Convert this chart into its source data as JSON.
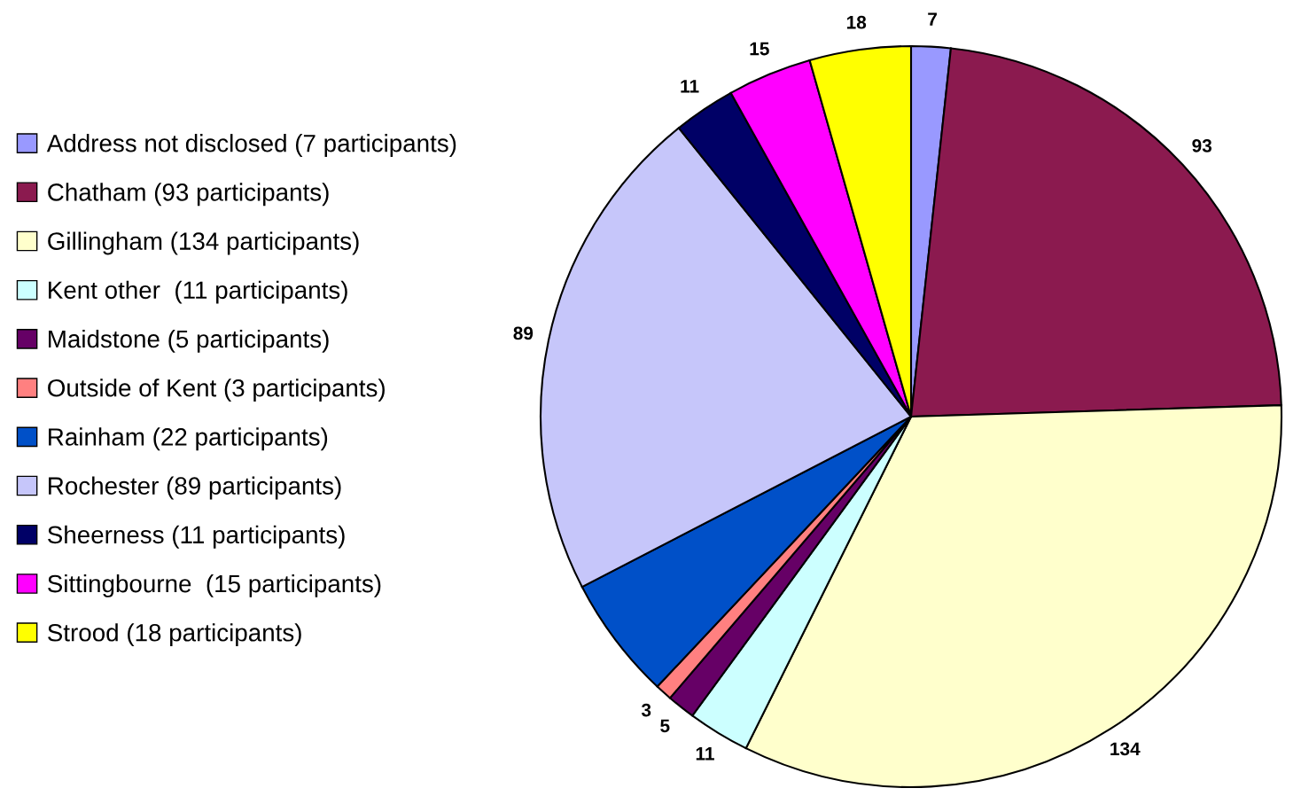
{
  "chart_data": {
    "type": "pie",
    "categories": [
      "Address not disclosed (7 participants)",
      "Chatham (93 participants)",
      "Gillingham (134 participants)",
      "Kent other  (11 participants)",
      "Maidstone (5 participants)",
      "Outside of Kent (3 participants)",
      "Rainham (22 participants)",
      "Rochester (89 participants)",
      "Sheerness (11 participants)",
      "Sittingbourne  (15 participants)",
      "Strood (18 participants)"
    ],
    "values": [
      7,
      93,
      134,
      11,
      5,
      3,
      22,
      89,
      11,
      15,
      18
    ],
    "colors": [
      "#9999ff",
      "#8b1a4f",
      "#ffffcc",
      "#ccffff",
      "#660066",
      "#ff8080",
      "#0050c8",
      "#c6c6fa",
      "#000066",
      "#ff00ff",
      "#ffff00"
    ],
    "value_labels": [
      "7",
      "93",
      "134",
      "11",
      "5",
      "3",
      null,
      "89",
      "11",
      "15",
      "18"
    ],
    "legend": "left"
  }
}
